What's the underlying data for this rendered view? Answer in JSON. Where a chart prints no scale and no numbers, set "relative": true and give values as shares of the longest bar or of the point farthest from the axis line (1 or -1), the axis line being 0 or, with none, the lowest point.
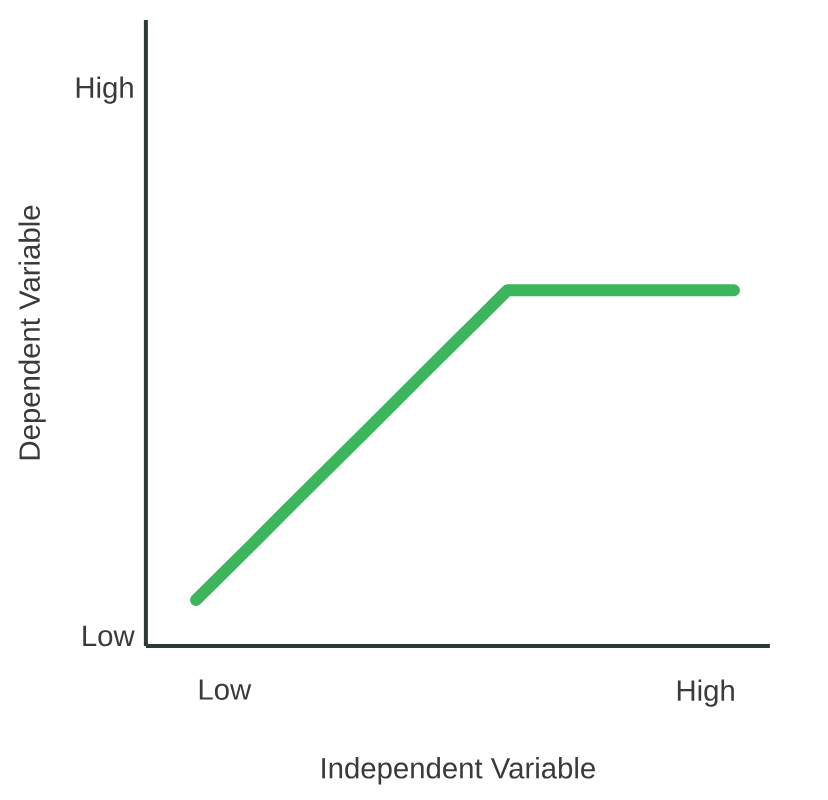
{
  "chart_data": {
    "type": "line",
    "relative": true,
    "xlabel": "Independent Variable",
    "ylabel": "Dependent Variable",
    "categories": [
      null,
      "Low",
      null,
      null,
      null,
      null,
      null,
      null,
      null,
      null,
      null,
      null,
      null,
      null,
      null,
      null,
      null,
      null,
      "High",
      null
    ],
    "series": [
      {
        "color": "#3cb55c",
        "values": [
          0.129,
          0.208,
          0.287,
          0.367,
          0.446,
          0.525,
          0.604,
          0.683,
          0.763,
          0.842,
          0.921,
          1,
          1,
          1,
          1,
          1,
          1,
          1,
          1,
          1
        ]
      }
    ],
    "annotations": [
      "Low",
      "High"
    ],
    "marker": "none",
    "line_style": "solid"
  }
}
